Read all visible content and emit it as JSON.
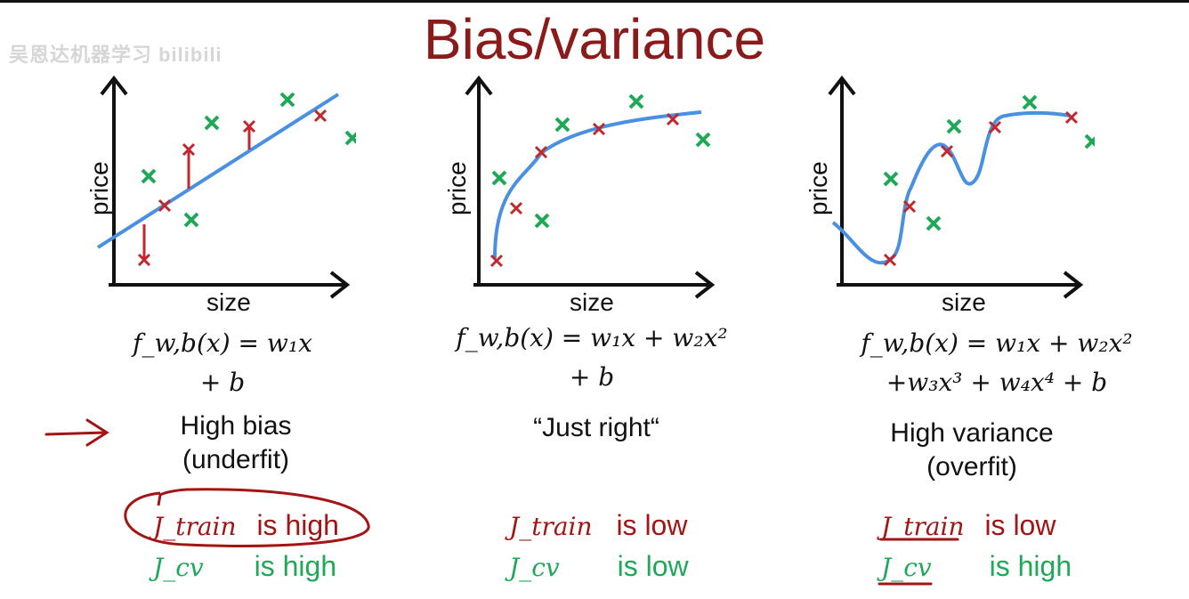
{
  "title": "Bias/variance",
  "watermark": "吴恩达机器学习 bilibili",
  "panels": [
    {
      "xlabel": "size",
      "ylabel": "price",
      "formula_line1": "f_w,b(x) = w₁x",
      "formula_line2": "+ b",
      "desc_line1": "High bias",
      "desc_line2": "(underfit)",
      "jtrain": "J_train",
      "jtrain_text": "is high",
      "jcv": "J_cv",
      "jcv_text": "is high"
    },
    {
      "xlabel": "size",
      "ylabel": "price",
      "formula_line1": "f_w,b(x) = w₁x + w₂x²",
      "formula_line2": "+ b",
      "desc_line1": "“Just right“",
      "desc_line2": "",
      "jtrain": "J_train",
      "jtrain_text": "is low",
      "jcv": "J_cv",
      "jcv_text": "is low"
    },
    {
      "xlabel": "size",
      "ylabel": "price",
      "formula_line1": "f_w,b(x) = w₁x + w₂x²",
      "formula_line2": "+w₃x³ + w₄x⁴ + b",
      "desc_line1": "High variance",
      "desc_line2": "(overfit)",
      "jtrain": "J_train",
      "jtrain_text": "is low",
      "jcv": "J_cv",
      "jcv_text": "is high"
    }
  ],
  "colors": {
    "title": "#8b1a1a",
    "train_point": "#c0282d",
    "cv_point": "#1fa857",
    "fit_curve": "#4a90e2",
    "annotation": "#a31515"
  }
}
